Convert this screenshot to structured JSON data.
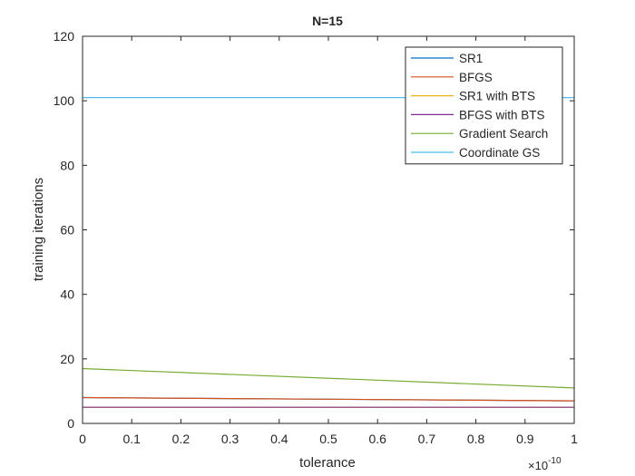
{
  "chart_data": {
    "type": "line",
    "title": "N=15",
    "xlabel": "tolerance",
    "ylabel": "training iterations",
    "x_exponent_label": "×10",
    "x_exponent_power": "-10",
    "x_multiplier": 1e-10,
    "xlim": [
      0,
      1
    ],
    "ylim": [
      0,
      120
    ],
    "x_ticks": [
      0,
      0.1,
      0.2,
      0.3,
      0.4,
      0.5,
      0.6,
      0.7,
      0.8,
      0.9,
      1
    ],
    "x_tick_labels": [
      "0",
      "0.1",
      "0.2",
      "0.3",
      "0.4",
      "0.5",
      "0.6",
      "0.7",
      "0.8",
      "0.9",
      "1"
    ],
    "y_ticks": [
      0,
      20,
      40,
      60,
      80,
      100,
      120
    ],
    "y_tick_labels": [
      "0",
      "20",
      "40",
      "60",
      "80",
      "100",
      "120"
    ],
    "grid": false,
    "legend_position": "top-right",
    "series": [
      {
        "name": "SR1",
        "color": "#0072BD",
        "x": [
          0,
          1
        ],
        "values": [
          8,
          7
        ]
      },
      {
        "name": "BFGS",
        "color": "#D95319",
        "x": [
          0,
          1
        ],
        "values": [
          8,
          7
        ]
      },
      {
        "name": "SR1 with BTS",
        "color": "#EDB120",
        "x": [
          0,
          1
        ],
        "values": [
          5,
          5
        ]
      },
      {
        "name": "BFGS with BTS",
        "color": "#7E2F8E",
        "x": [
          0,
          1
        ],
        "values": [
          5,
          5
        ]
      },
      {
        "name": "Gradient Search",
        "color": "#77AC30",
        "x": [
          0,
          1
        ],
        "values": [
          17,
          11
        ]
      },
      {
        "name": "Coordinate GS",
        "color": "#4DBEEE",
        "x": [
          0,
          1
        ],
        "values": [
          101,
          101
        ]
      }
    ]
  }
}
